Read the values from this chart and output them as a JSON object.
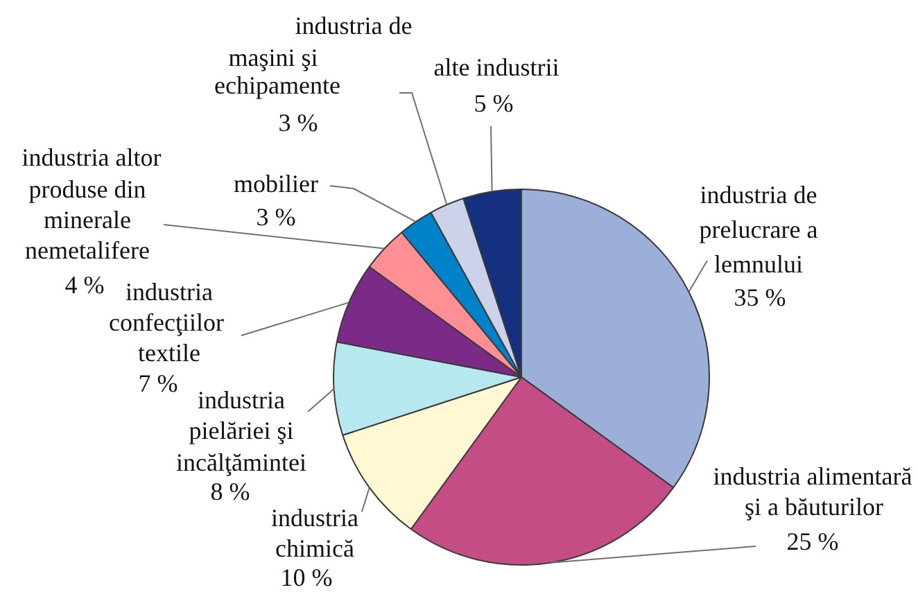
{
  "chart_data": {
    "type": "pie",
    "categories": [
      "industria de prelucrare a lemnului",
      "industria alimentară şi a băuturilor",
      "industria chimică",
      "industria pielăriei şi incălţămintei",
      "industria confecţiilor textile",
      "industria altor produse din minerale nemetalifere",
      "mobilier",
      "industria de maşini şi echipamente",
      "alte industrii"
    ],
    "values": [
      35,
      25,
      10,
      8,
      7,
      4,
      3,
      3,
      5
    ],
    "colors": [
      "#9bafd9",
      "#c54d86",
      "#fff8d2",
      "#b8e8ef",
      "#7c2a87",
      "#ff8e95",
      "#0082c8",
      "#ccd2ea",
      "#15307e"
    ],
    "value_labels": [
      "35 %",
      "25 %",
      "10 %",
      "8 %",
      "7 %",
      "4 %",
      "3 %",
      "3 %",
      "5 %"
    ],
    "legend": false
  }
}
